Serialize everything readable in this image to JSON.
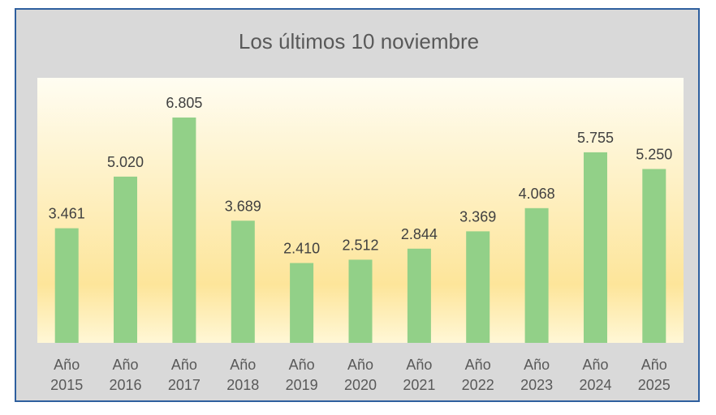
{
  "chart_data": {
    "type": "bar",
    "title": "Los últimos 10 noviembre",
    "categories": [
      [
        "Año",
        "2015"
      ],
      [
        "Año",
        "2016"
      ],
      [
        "Año",
        "2017"
      ],
      [
        "Año",
        "2018"
      ],
      [
        "Año",
        "2019"
      ],
      [
        "Año",
        "2020"
      ],
      [
        "Año",
        "2021"
      ],
      [
        "Año",
        "2022"
      ],
      [
        "Año",
        "2023"
      ],
      [
        "Año",
        "2024"
      ],
      [
        "Año",
        "2025"
      ]
    ],
    "values": [
      3461,
      5020,
      6805,
      3689,
      2410,
      2512,
      2844,
      3369,
      4068,
      5755,
      5250
    ],
    "value_labels": [
      "3.461",
      "5.020",
      "6.805",
      "3.689",
      "2.410",
      "2.512",
      "2.844",
      "3.369",
      "4.068",
      "5.755",
      "5.250"
    ],
    "xlabel": "",
    "ylabel": "",
    "ylim": [
      0,
      8000
    ],
    "grid": false,
    "legend": "none",
    "colors": {
      "bar": "#92d088",
      "frame_border": "#2e5f9e",
      "frame_bg": "#d9d9d9",
      "plot_top": "#fffdf2",
      "plot_mid": "#fde59a",
      "plot_bottom": "#fff7d6"
    }
  }
}
